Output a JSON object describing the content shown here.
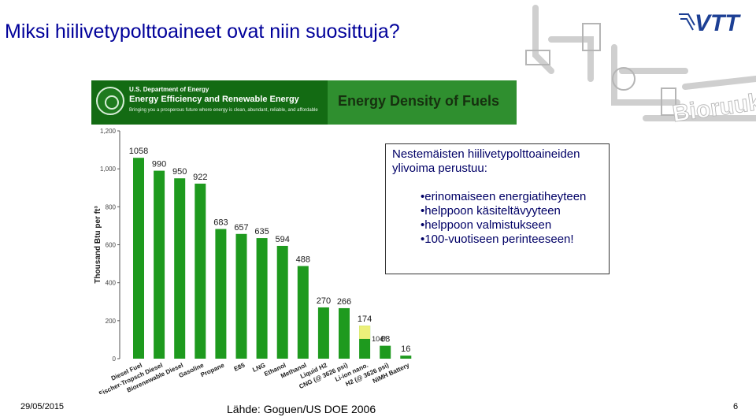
{
  "slide": {
    "title": "Miksi hiilivetypolttoaineet ovat niin suosittuja?",
    "date": "29/05/2015",
    "source": "Lähde: Goguen/US DOE 2006",
    "page_number": "6"
  },
  "logo": {
    "brand_text": "VTT",
    "decor_text": "Bioruukki",
    "brand_color": "#1c3f94"
  },
  "doe_banner": {
    "agency": "U.S. Department of Energy",
    "office": "Energy Efficiency and Renewable Energy",
    "tagline": "Bringing you a prosperous future where energy is clean, abundant, reliable, and affordable",
    "chart_heading": "Energy Density of Fuels"
  },
  "callout": {
    "heading": "Nestemäisten hiilivetypolttoaineiden ylivoima perustuu:",
    "items": [
      "erinomaiseen energiatiheyteen",
      "helppoon käsiteltävyyteen",
      "helppoon valmistukseen",
      "100-vuotiseen perinteeseen!"
    ]
  },
  "chart_data": {
    "type": "bar",
    "ylabel": "Thousand Btu per ft³",
    "xlabel": "",
    "ylim": [
      0,
      1200
    ],
    "yticks": [
      "0",
      "200",
      "400",
      "600",
      "800",
      "1,000",
      "1,200"
    ],
    "grid": false,
    "categories": [
      "Diesel Fuel",
      "Fischer-Tropsch Diesel",
      "Biorenewable Diesel",
      "Gasoline",
      "Propane",
      "E85",
      "LNG",
      "Ethanol",
      "Methanol",
      "Liquid H2",
      "CNG (@ 3626 psi)",
      "Li-ion nano.",
      "H2 (@ 3626 psi)",
      "NiMH Battery"
    ],
    "values": [
      1058,
      990,
      950,
      922,
      683,
      657,
      635,
      594,
      488,
      270,
      266,
      174,
      68,
      16
    ],
    "value_labels": [
      "1058",
      "990",
      "950",
      "922",
      "683",
      "657",
      "635",
      "594",
      "488",
      "270",
      "266",
      "174",
      "68",
      "16"
    ],
    "annotations": [
      {
        "category": "Li-ion nano.",
        "value": 104,
        "label": "104*"
      }
    ],
    "bar_color": "#1e9a1e",
    "annotation_color": "#ecf07a"
  }
}
